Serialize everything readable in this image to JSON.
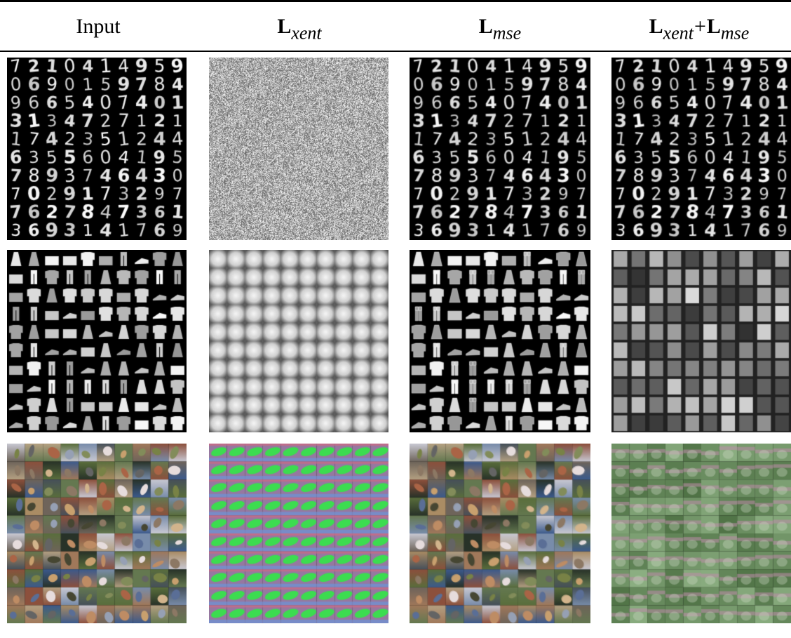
{
  "header": {
    "col0": {
      "label": "Input"
    },
    "col1": {
      "base": "L",
      "sub": "xent"
    },
    "col2": {
      "base": "L",
      "sub": "mse"
    },
    "col3": {
      "base1": "L",
      "sub1": "xent",
      "plus": "+",
      "base2": "L",
      "sub2": "mse"
    }
  },
  "rows": [
    {
      "dataset": "mnist"
    },
    {
      "dataset": "fashion-mnist"
    },
    {
      "dataset": "cifar"
    }
  ],
  "mnist_digits": [
    "7210414959",
    "0690159784",
    "9665407401",
    "3134727121",
    "1742351244",
    "6355604195",
    "7893746430",
    "7029173297",
    "7627847361",
    "3693141769"
  ],
  "grid": {
    "rows": 10,
    "cols": 10
  }
}
